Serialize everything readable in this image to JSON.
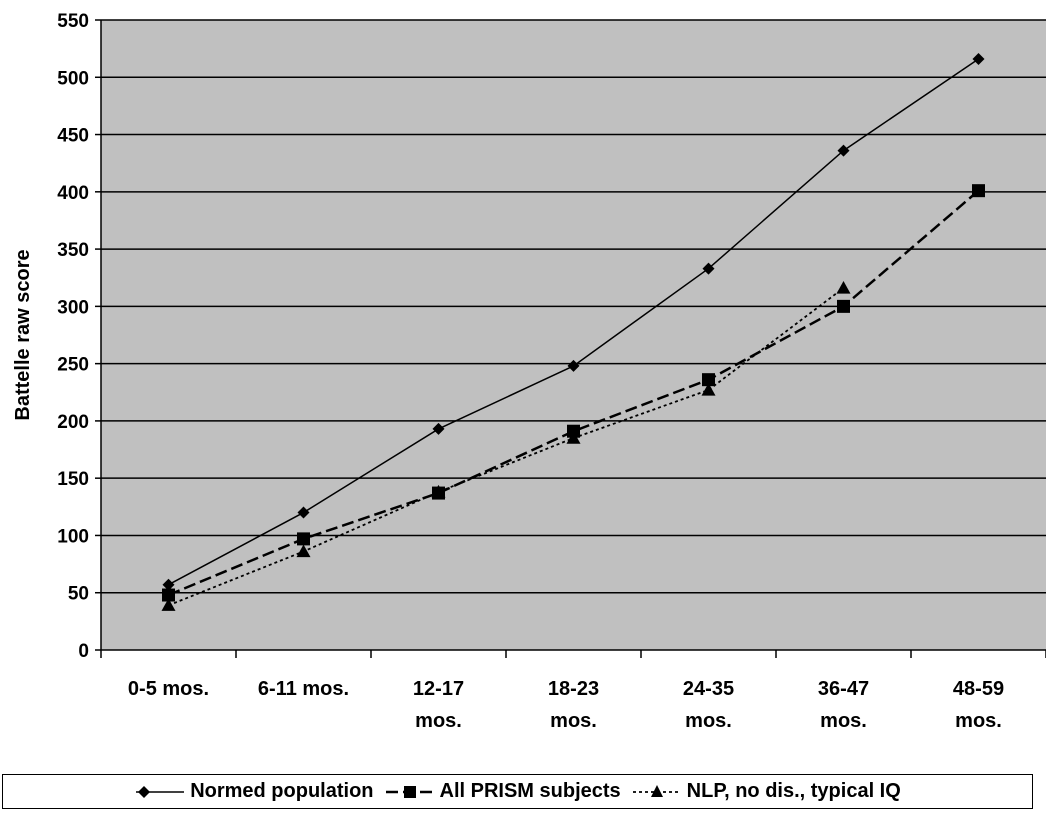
{
  "chart_data": {
    "type": "line",
    "title": "",
    "xlabel": "",
    "ylabel": "Battelle raw score",
    "ylim": [
      0,
      550
    ],
    "yticks": [
      0,
      50,
      100,
      150,
      200,
      250,
      300,
      350,
      400,
      450,
      500,
      550
    ],
    "grid": true,
    "legend_position": "bottom",
    "categories": [
      [
        "0-5 mos."
      ],
      [
        "6-11 mos."
      ],
      [
        "12-17",
        "mos."
      ],
      [
        "18-23",
        "mos."
      ],
      [
        "24-35",
        "mos."
      ],
      [
        "36-47",
        "mos."
      ],
      [
        "48-59",
        "mos."
      ]
    ],
    "series": [
      {
        "name": "Normed population",
        "marker": "diamond",
        "dash": "solid",
        "values": [
          57,
          120,
          193,
          248,
          333,
          436,
          516
        ]
      },
      {
        "name": "All PRISM subjects",
        "marker": "square",
        "dash": "dashed",
        "values": [
          48,
          97,
          137,
          191,
          236,
          300,
          401
        ]
      },
      {
        "name": "NLP, no dis., typical IQ",
        "marker": "triangle",
        "dash": "dotted",
        "values": [
          39,
          86,
          138,
          185,
          227,
          316,
          null
        ]
      }
    ]
  },
  "colors": {
    "plot_background": "#c0c0c0",
    "gridline": "#000000",
    "series_line": "#000000"
  }
}
